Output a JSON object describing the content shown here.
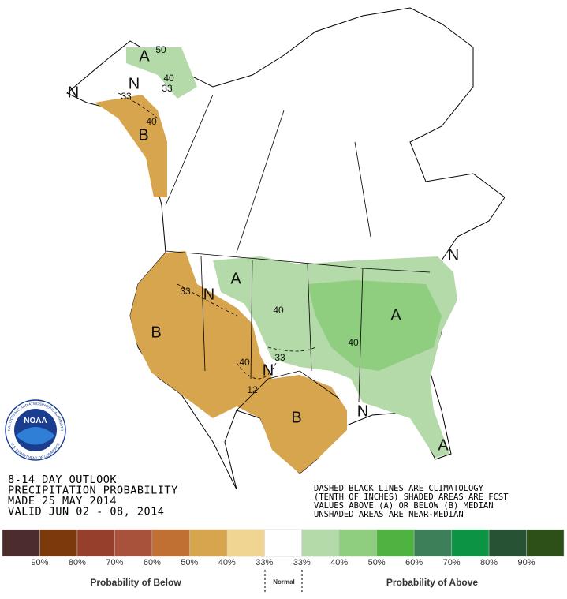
{
  "outlook": {
    "lines": [
      "8-14 DAY OUTLOOK",
      "PRECIPITATION PROBABILITY",
      "MADE  25 MAY 2014",
      "VALID   JUN 02 - 08, 2014"
    ]
  },
  "notes": {
    "lines": [
      "DASHED BLACK LINES ARE CLIMATOLOGY",
      "(TENTH OF INCHES) SHADED AREAS ARE FCST",
      "VALUES ABOVE (A) OR BELOW (B) MEDIAN",
      "UNSHADED AREAS ARE NEAR-MEDIAN"
    ]
  },
  "logo": {
    "name": "NOAA",
    "ring_top": "NATIONAL OCEANIC AND ATMOSPHERIC ADMINISTRATION",
    "ring_bottom": "U.S. DEPARTMENT OF COMMERCE"
  },
  "map_labels": [
    "A",
    "50",
    "40",
    "33",
    "N",
    "N",
    "33",
    "40",
    "B",
    "33",
    "N",
    "B",
    "40",
    "12",
    "N",
    "B",
    "N",
    "A",
    "40",
    "33",
    "40",
    "A",
    "N",
    "A"
  ],
  "legend": {
    "colors": [
      "#4c2c2c",
      "#7c3a0c",
      "#973f2d",
      "#a8523c",
      "#c07033",
      "#d8a54f",
      "#f0d492",
      "#ffffff",
      "#b3daa8",
      "#8fce7f",
      "#4fb340",
      "#3d7f58",
      "#0c9444",
      "#275233",
      "#2d5018"
    ],
    "labels": [
      "90%",
      "80%",
      "70%",
      "60%",
      "50%",
      "40%",
      "33%",
      "33%",
      "40%",
      "50%",
      "60%",
      "70%",
      "80%",
      "90%"
    ],
    "below": "Probability of Below",
    "normal": "Normal",
    "above": "Probability of Above"
  }
}
